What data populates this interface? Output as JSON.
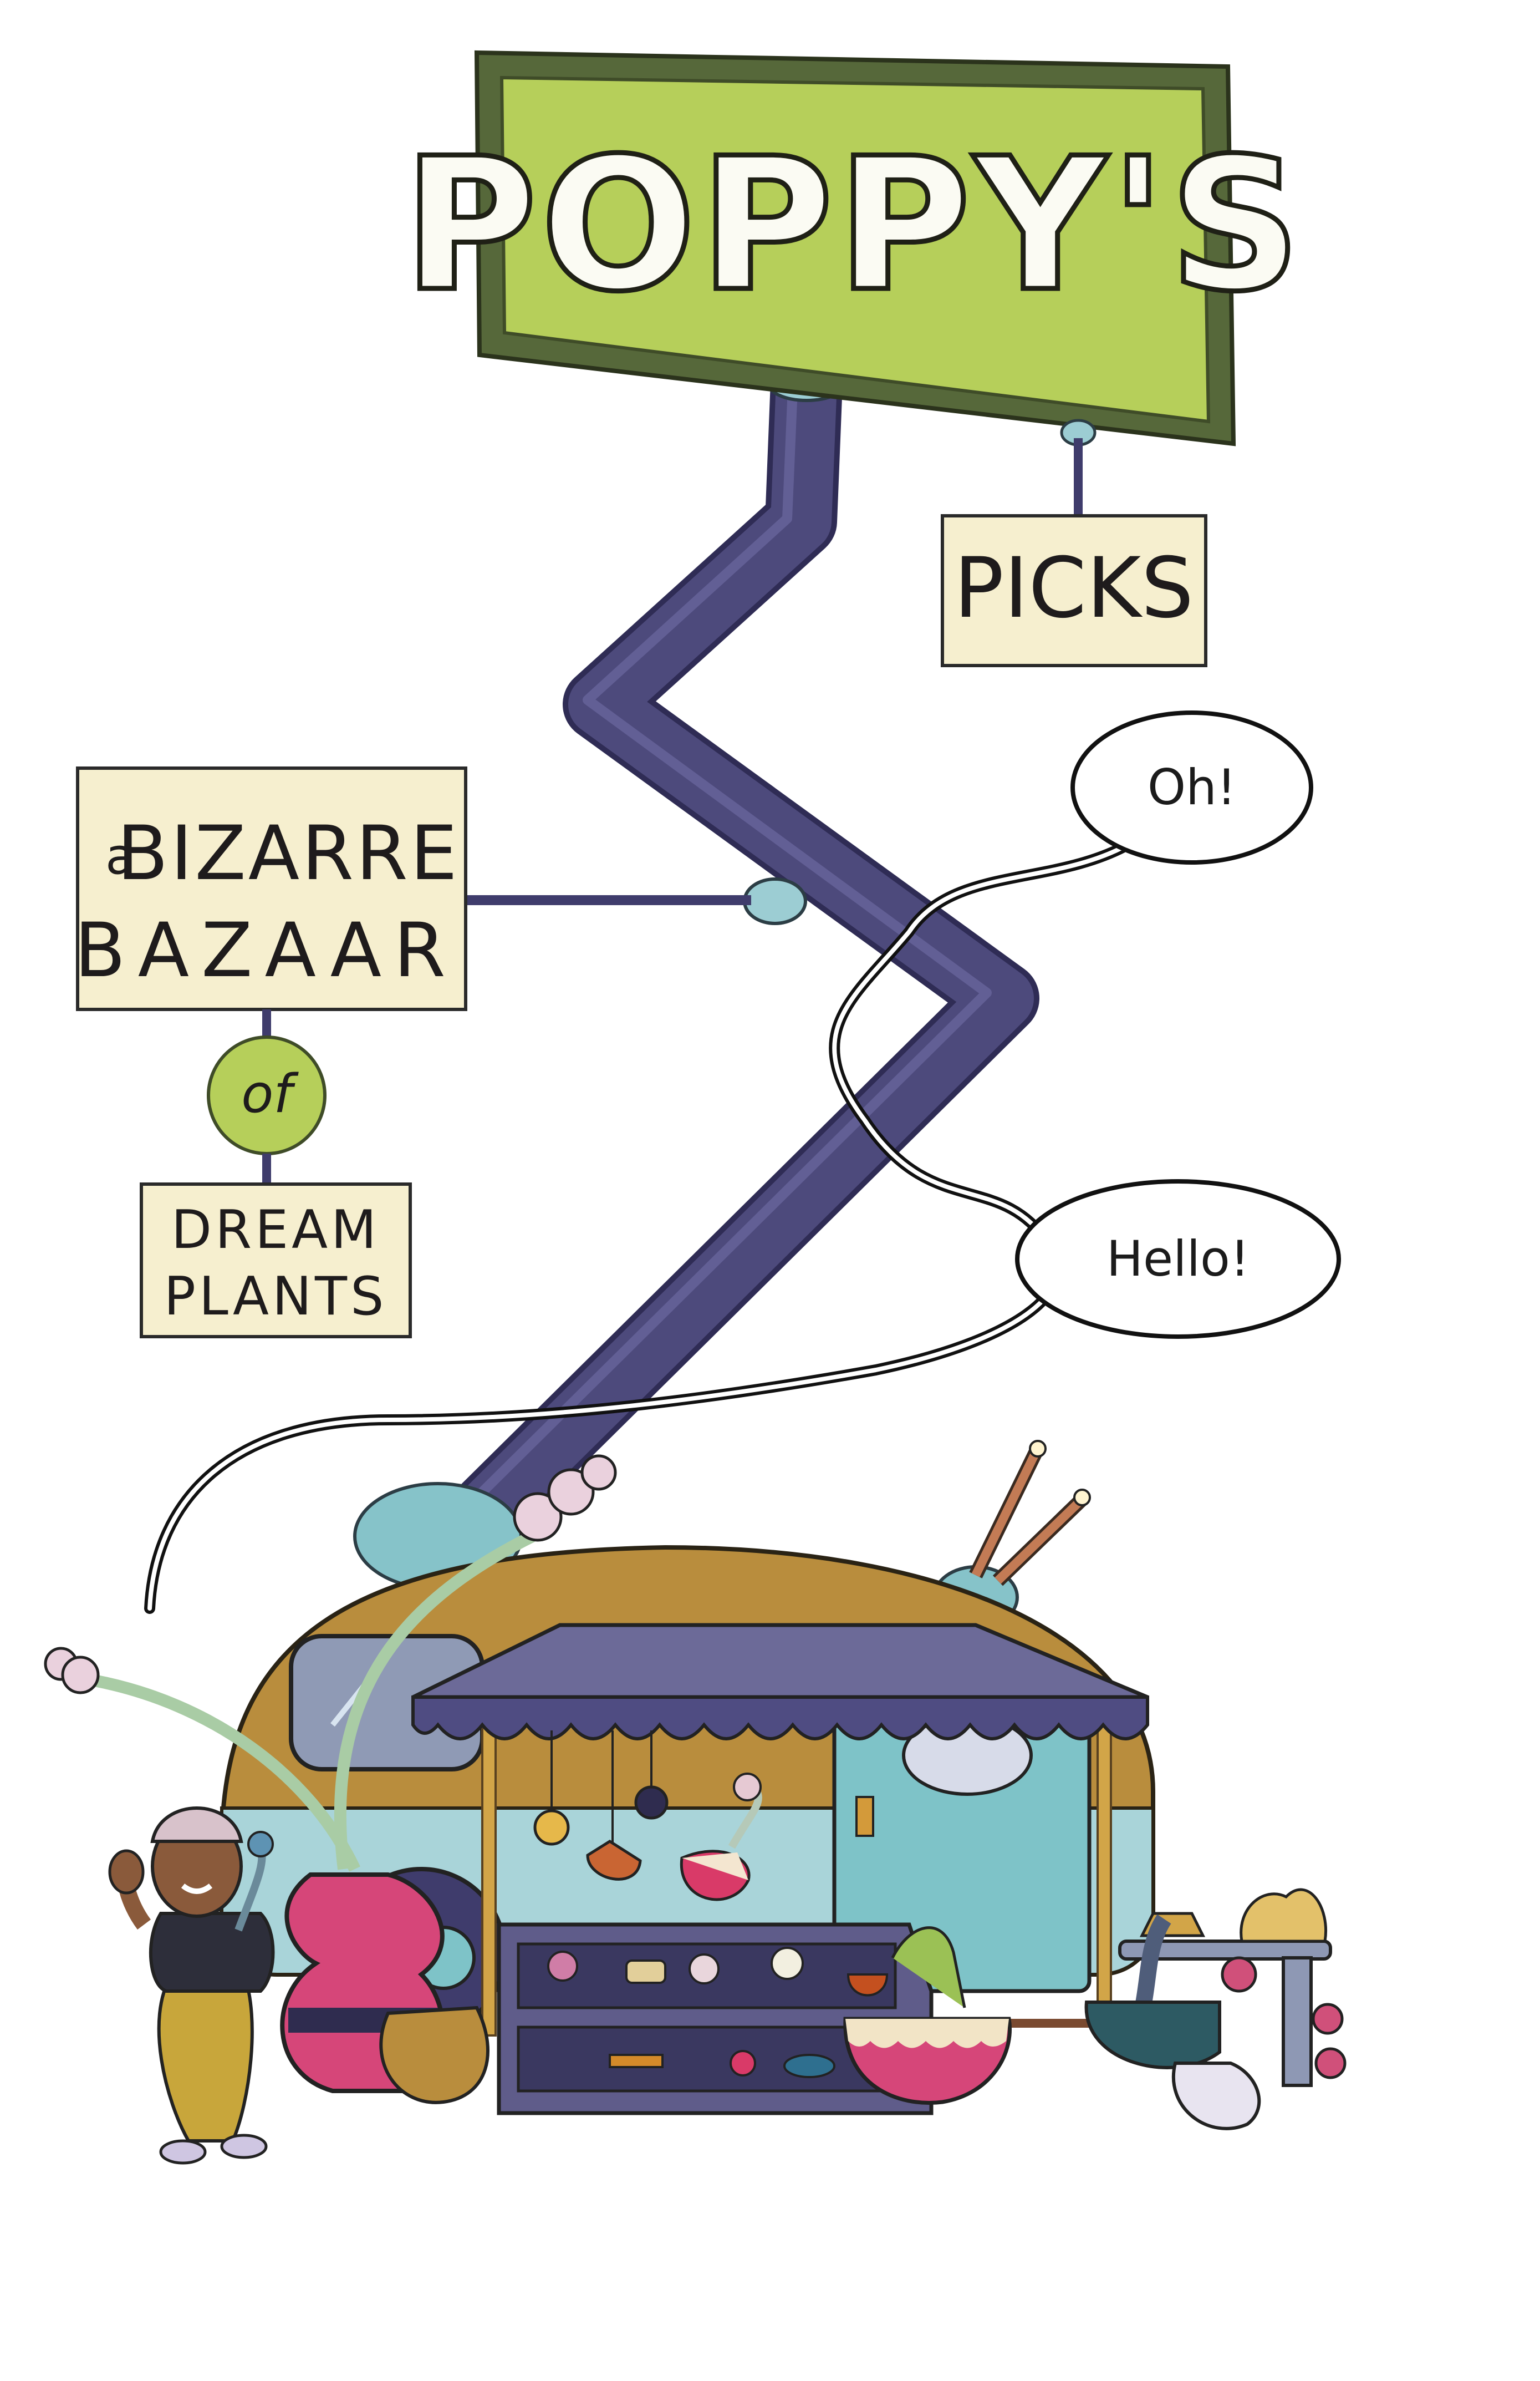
{
  "signs": {
    "main": "POPPY'S",
    "picks": "PICKS",
    "bazaar_a": "a",
    "bazaar_line1": "BIZARRE",
    "bazaar_line2": "BAZAAR",
    "of": "of",
    "dream": "DREAM",
    "plants": "PLANTS"
  },
  "bubbles": {
    "oh": "Oh!",
    "hello": "Hello!"
  },
  "colors": {
    "sign_green": "#b6cf5a",
    "sign_frame": "#5c6e37",
    "pole": "#4d4a7c",
    "caravan_gold": "#b98d3d",
    "caravan_blue": "#a9d4d9",
    "awning": "#6c6a98",
    "label_cream": "#f6efcf"
  }
}
